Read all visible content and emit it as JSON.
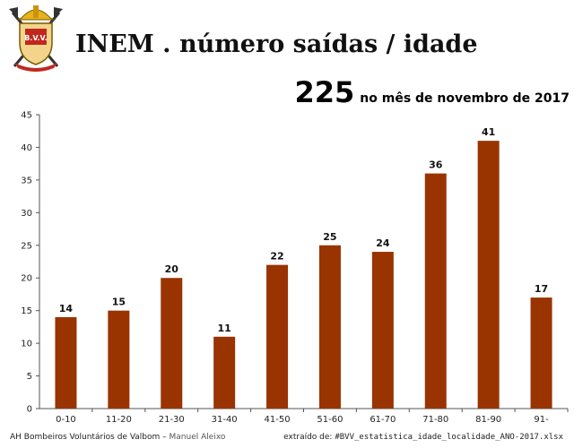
{
  "header": {
    "title": "INEM . número saídas / idade",
    "total": "225",
    "total_label": "no mês de novembro de 2017",
    "logo_text": "B.V.V."
  },
  "chart_data": {
    "type": "bar",
    "categories": [
      "0-10",
      "11-20",
      "21-30",
      "31-40",
      "41-50",
      "51-60",
      "61-70",
      "71-80",
      "81-90",
      "91-"
    ],
    "values": [
      14,
      15,
      20,
      11,
      22,
      25,
      24,
      36,
      41,
      17
    ],
    "ylim": [
      0,
      45
    ],
    "yticks": [
      0,
      5,
      10,
      15,
      20,
      25,
      30,
      35,
      40,
      45
    ],
    "grid": false,
    "data_labels": true,
    "bar_color": "#993300"
  },
  "footer": {
    "left": "AH Bombeiros Voluntários de Valbom",
    "left_sep": " – ",
    "author": "Manuel Aleixo",
    "right_prefix": "extraído de: ",
    "source_file": "#BVV_estatistica_idade_localidade_ANO-2017.xlsx"
  },
  "colors": {
    "logo_red": "#c0281e",
    "logo_gold": "#e8b21a"
  }
}
